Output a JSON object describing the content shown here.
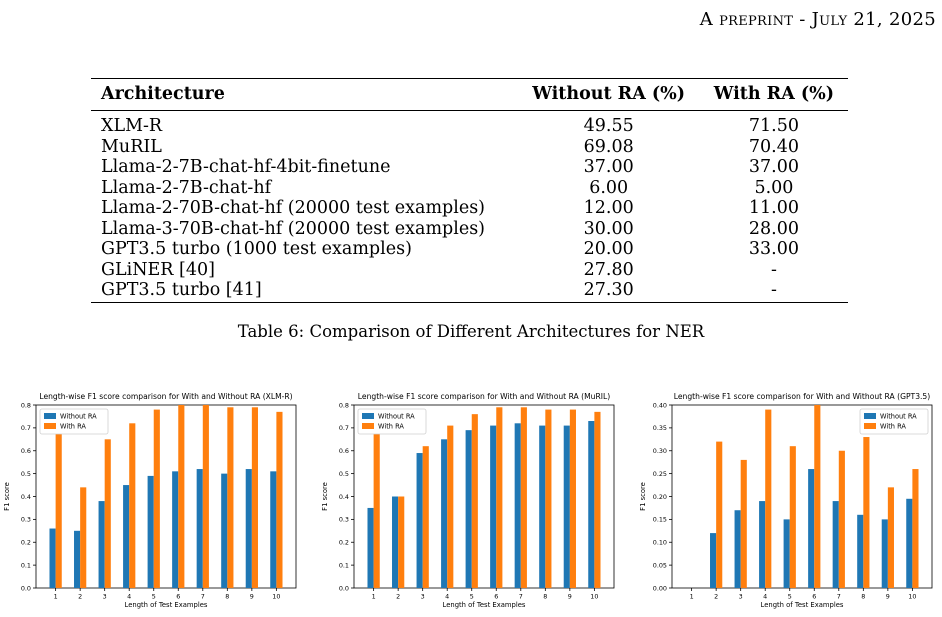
{
  "header": {
    "running_title": "A preprint - July 21, 2025"
  },
  "table": {
    "headers": [
      "Architecture",
      "Without RA (%)",
      "With RA (%)"
    ],
    "rows": [
      [
        "XLM-R",
        "49.55",
        "71.50"
      ],
      [
        "MuRIL",
        "69.08",
        "70.40"
      ],
      [
        "Llama-2-7B-chat-hf-4bit-finetune",
        "37.00",
        "37.00"
      ],
      [
        "Llama-2-7B-chat-hf",
        "6.00",
        "5.00"
      ],
      [
        "Llama-2-70B-chat-hf (20000 test examples)",
        "12.00",
        "11.00"
      ],
      [
        "Llama-3-70B-chat-hf (20000 test examples)",
        "30.00",
        "28.00"
      ],
      [
        "GPT3.5 turbo (1000 test examples)",
        "20.00",
        "33.00"
      ],
      [
        "GLiNER [40]",
        "27.80",
        "-"
      ],
      [
        "GPT3.5 turbo [41]",
        "27.30",
        "-"
      ]
    ],
    "caption": "Table 6: Comparison of Different Architectures for NER"
  },
  "colors": {
    "without_ra": "#1f77b4",
    "with_ra": "#ff7f0e"
  },
  "chart_data": [
    {
      "type": "bar",
      "title": "Length-wise F1 score comparison for With and Without RA (XLM-R)",
      "xlabel": "Length of Test Examples",
      "ylabel": "F1 score",
      "categories": [
        "1",
        "2",
        "3",
        "4",
        "5",
        "6",
        "7",
        "8",
        "9",
        "10"
      ],
      "ylim": [
        0,
        0.8
      ],
      "yticks": [
        "0.0",
        "0.1",
        "0.2",
        "0.3",
        "0.4",
        "0.5",
        "0.6",
        "0.7",
        "0.8"
      ],
      "legend_position": "top-left",
      "series": [
        {
          "name": "Without RA",
          "values": [
            0.26,
            0.25,
            0.38,
            0.45,
            0.49,
            0.51,
            0.52,
            0.5,
            0.52,
            0.51
          ]
        },
        {
          "name": "With RA",
          "values": [
            0.72,
            0.44,
            0.65,
            0.72,
            0.78,
            0.8,
            0.8,
            0.79,
            0.79,
            0.77
          ]
        }
      ]
    },
    {
      "type": "bar",
      "title": "Length-wise F1 score comparison for With and Without RA (MuRIL)",
      "xlabel": "Length of Test Examples",
      "ylabel": "F1 score",
      "categories": [
        "1",
        "2",
        "3",
        "4",
        "5",
        "6",
        "7",
        "8",
        "9",
        "10"
      ],
      "ylim": [
        0,
        0.8
      ],
      "yticks": [
        "0.0",
        "0.1",
        "0.2",
        "0.3",
        "0.4",
        "0.5",
        "0.6",
        "0.7",
        "0.8"
      ],
      "legend_position": "top-left",
      "series": [
        {
          "name": "Without RA",
          "values": [
            0.35,
            0.4,
            0.59,
            0.65,
            0.69,
            0.71,
            0.72,
            0.71,
            0.71,
            0.73
          ]
        },
        {
          "name": "With RA",
          "values": [
            0.72,
            0.4,
            0.62,
            0.71,
            0.76,
            0.79,
            0.79,
            0.78,
            0.78,
            0.77
          ]
        }
      ]
    },
    {
      "type": "bar",
      "title": "Length-wise F1 score comparison for With and Without RA (GPT3.5)",
      "xlabel": "Length of Test Examples",
      "ylabel": "F1 score",
      "categories": [
        "1",
        "2",
        "3",
        "4",
        "5",
        "6",
        "7",
        "8",
        "9",
        "10"
      ],
      "ylim": [
        0,
        0.4
      ],
      "yticks": [
        "0.00",
        "0.05",
        "0.10",
        "0.15",
        "0.20",
        "0.25",
        "0.30",
        "0.35",
        "0.40"
      ],
      "legend_position": "top-right",
      "series": [
        {
          "name": "Without RA",
          "values": [
            0,
            0.12,
            0.17,
            0.19,
            0.15,
            0.26,
            0.19,
            0.16,
            0.15,
            0.195
          ]
        },
        {
          "name": "With RA",
          "values": [
            0,
            0.32,
            0.28,
            0.39,
            0.31,
            0.4,
            0.3,
            0.33,
            0.22,
            0.26
          ]
        }
      ]
    }
  ]
}
